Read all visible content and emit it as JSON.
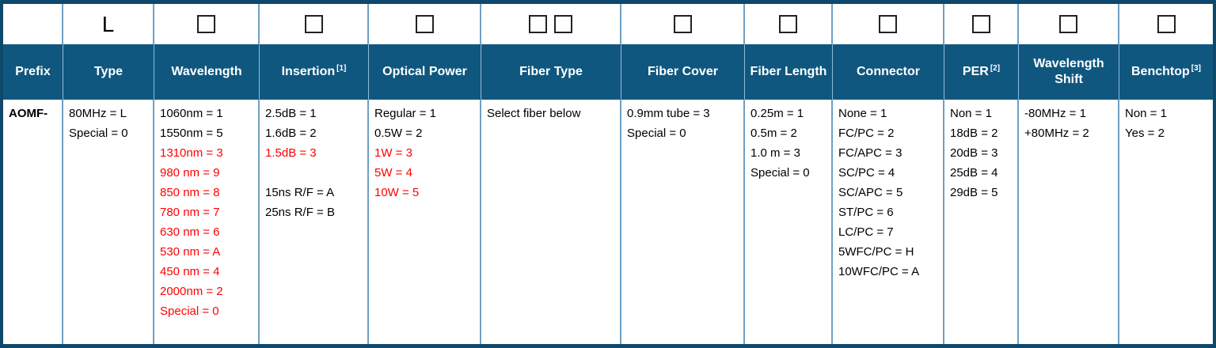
{
  "colors": {
    "header_bg": "#10577F",
    "outer_border": "#0E486B",
    "grid_line": "#6FA0C4",
    "header_grid_line": "#8FBCD9",
    "red_text": "#FF0000",
    "black_text": "#000000"
  },
  "table": {
    "description": "Part number ordering code table",
    "prefix_code": "AOMF-",
    "columns": [
      {
        "id": "prefix",
        "header": {
          "label": "Prefix",
          "sup": ""
        },
        "top": {
          "kind": "empty"
        },
        "options": [
          {
            "text": "AOMF-",
            "red": false,
            "bold": true
          }
        ]
      },
      {
        "id": "type",
        "header": {
          "label": "Type",
          "sup": ""
        },
        "top": {
          "kind": "text",
          "value": "L"
        },
        "options": [
          {
            "text": "80MHz = L",
            "red": false
          },
          {
            "text": "Special = 0",
            "red": false
          }
        ]
      },
      {
        "id": "wavelength",
        "header": {
          "label": "Wavelength",
          "sup": ""
        },
        "top": {
          "kind": "checkbox",
          "count": 1
        },
        "options": [
          {
            "text": "1060nm = 1",
            "red": false
          },
          {
            "text": "1550nm = 5",
            "red": false
          },
          {
            "text": "1310nm = 3",
            "red": true
          },
          {
            "text": "980 nm = 9",
            "red": true
          },
          {
            "text": "850 nm = 8",
            "red": true
          },
          {
            "text": "780 nm = 7",
            "red": true
          },
          {
            "text": "630 nm = 6",
            "red": true
          },
          {
            "text": "530 nm = A",
            "red": true
          },
          {
            "text": "450 nm = 4",
            "red": true
          },
          {
            "text": "2000nm = 2",
            "red": true
          },
          {
            "text": "Special = 0",
            "red": true
          }
        ]
      },
      {
        "id": "insertion",
        "header": {
          "label": "Insertion",
          "sup": "[1]"
        },
        "top": {
          "kind": "checkbox",
          "count": 1
        },
        "options": [
          {
            "text": "2.5dB = 1",
            "red": false
          },
          {
            "text": "1.6dB = 2",
            "red": false
          },
          {
            "text": "1.5dB = 3",
            "red": true
          },
          {
            "text": "",
            "red": false
          },
          {
            "text": "15ns R/F = A",
            "red": false
          },
          {
            "text": "25ns R/F = B",
            "red": false
          }
        ]
      },
      {
        "id": "optical-power",
        "header": {
          "label": "Optical Power",
          "sup": ""
        },
        "top": {
          "kind": "checkbox",
          "count": 1
        },
        "options": [
          {
            "text": "Regular = 1",
            "red": false
          },
          {
            "text": "0.5W = 2",
            "red": false
          },
          {
            "text": "1W = 3",
            "red": true
          },
          {
            "text": "5W = 4",
            "red": true
          },
          {
            "text": "10W = 5",
            "red": true
          }
        ]
      },
      {
        "id": "fiber-type",
        "header": {
          "label": "Fiber Type",
          "sup": ""
        },
        "top": {
          "kind": "checkbox",
          "count": 2
        },
        "options": [
          {
            "text": "Select fiber below",
            "red": false
          }
        ]
      },
      {
        "id": "fiber-cover",
        "header": {
          "label": "Fiber Cover",
          "sup": ""
        },
        "top": {
          "kind": "checkbox",
          "count": 1
        },
        "options": [
          {
            "text": "0.9mm tube = 3",
            "red": false
          },
          {
            "text": "Special = 0",
            "red": false
          }
        ]
      },
      {
        "id": "fiber-length",
        "header": {
          "label": "Fiber Length",
          "sup": ""
        },
        "top": {
          "kind": "checkbox",
          "count": 1
        },
        "options": [
          {
            "text": "0.25m = 1",
            "red": false
          },
          {
            "text": "0.5m = 2",
            "red": false
          },
          {
            "text": "1.0 m = 3",
            "red": false
          },
          {
            "text": "Special = 0",
            "red": false
          }
        ]
      },
      {
        "id": "connector",
        "header": {
          "label": "Connector",
          "sup": ""
        },
        "top": {
          "kind": "checkbox",
          "count": 1
        },
        "options": [
          {
            "text": "None = 1",
            "red": false
          },
          {
            "text": "FC/PC = 2",
            "red": false
          },
          {
            "text": "FC/APC = 3",
            "red": false
          },
          {
            "text": "SC/PC = 4",
            "red": false
          },
          {
            "text": "SC/APC = 5",
            "red": false
          },
          {
            "text": "ST/PC = 6",
            "red": false
          },
          {
            "text": "LC/PC = 7",
            "red": false
          },
          {
            "text": "5WFC/PC = H",
            "red": false
          },
          {
            "text": "10WFC/PC = A",
            "red": false
          }
        ]
      },
      {
        "id": "per",
        "header": {
          "label": "PER",
          "sup": "[2]"
        },
        "top": {
          "kind": "checkbox",
          "count": 1
        },
        "options": [
          {
            "text": "Non = 1",
            "red": false
          },
          {
            "text": "18dB = 2",
            "red": false
          },
          {
            "text": "20dB = 3",
            "red": false
          },
          {
            "text": "25dB = 4",
            "red": false
          },
          {
            "text": "29dB = 5",
            "red": false
          }
        ]
      },
      {
        "id": "wavelength-shift",
        "header": {
          "label": "Wavelength Shift",
          "sup": ""
        },
        "top": {
          "kind": "checkbox",
          "count": 1
        },
        "options": [
          {
            "text": "-80MHz = 1",
            "red": false
          },
          {
            "text": "+80MHz = 2",
            "red": false
          }
        ]
      },
      {
        "id": "benchtop",
        "header": {
          "label": "Benchtop",
          "sup": "[3]"
        },
        "top": {
          "kind": "checkbox",
          "count": 1
        },
        "options": [
          {
            "text": "Non = 1",
            "red": false
          },
          {
            "text": "Yes = 2",
            "red": false
          }
        ]
      }
    ]
  }
}
